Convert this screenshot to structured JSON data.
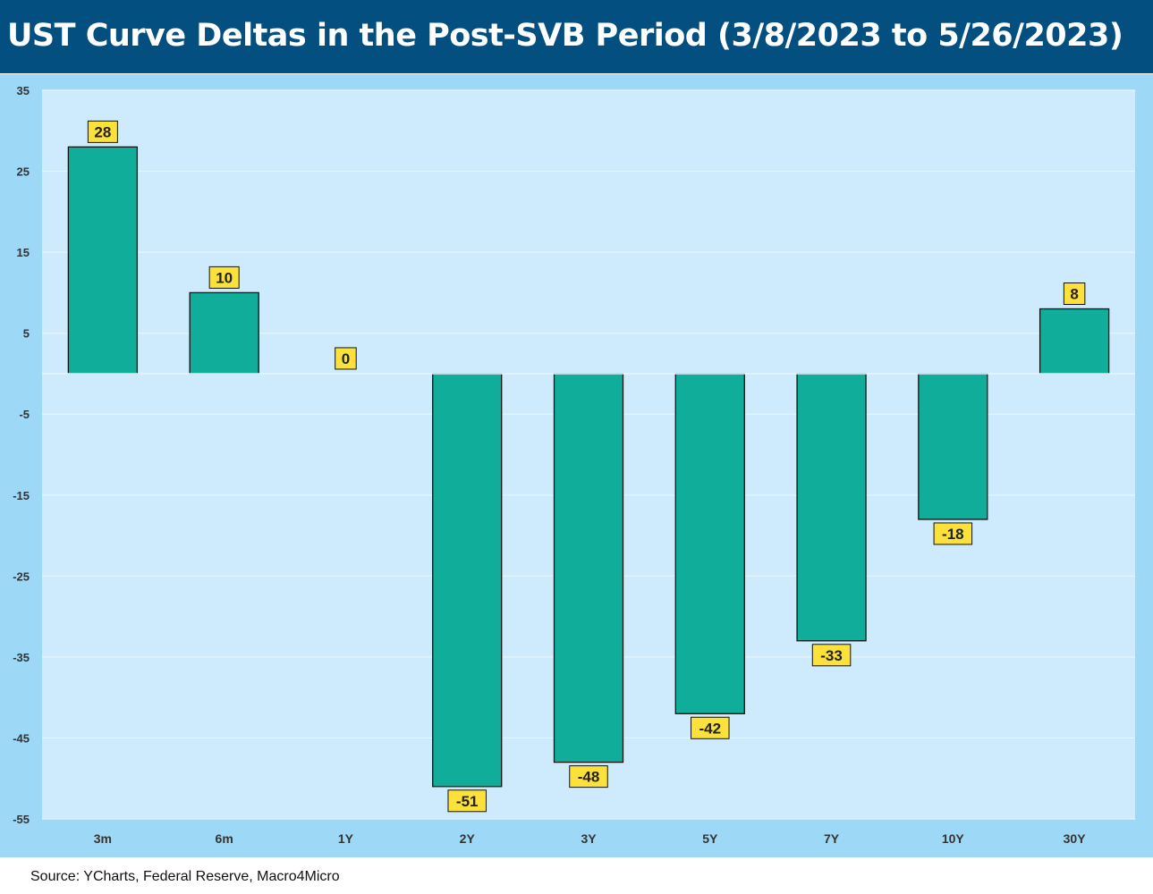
{
  "title": "UST Curve Deltas in the Post-SVB Period (3/8/2023 to 5/26/2023)",
  "source": "Source: YCharts, Federal Reserve, Macro4Micro",
  "colors": {
    "title_bg": "#034f80",
    "frame_bg": "#9ed8f7",
    "plot_bg": "#cdebfc",
    "bar": "#10ae9a",
    "label_bg": "#fce13a",
    "text": "#333333"
  },
  "chart_data": {
    "type": "bar",
    "categories": [
      "3m",
      "6m",
      "1Y",
      "2Y",
      "3Y",
      "5Y",
      "7Y",
      "10Y",
      "30Y"
    ],
    "values": [
      28,
      10,
      0,
      -51,
      -48,
      -42,
      -33,
      -18,
      8
    ],
    "data_labels": [
      "28",
      "10",
      "0",
      "-51",
      "-48",
      "-42",
      "-33",
      "-18",
      "8"
    ],
    "ylim": [
      -55,
      35
    ],
    "yticks": [
      35,
      25,
      15,
      5,
      -5,
      -15,
      -25,
      -35,
      -45,
      -55
    ],
    "ytick_labels": [
      "35",
      "25",
      "15",
      "5",
      "-5",
      "-15",
      "-25",
      "-35",
      "-45",
      "-55"
    ],
    "grid": true,
    "legend": "none",
    "xlabel": "",
    "ylabel": ""
  }
}
